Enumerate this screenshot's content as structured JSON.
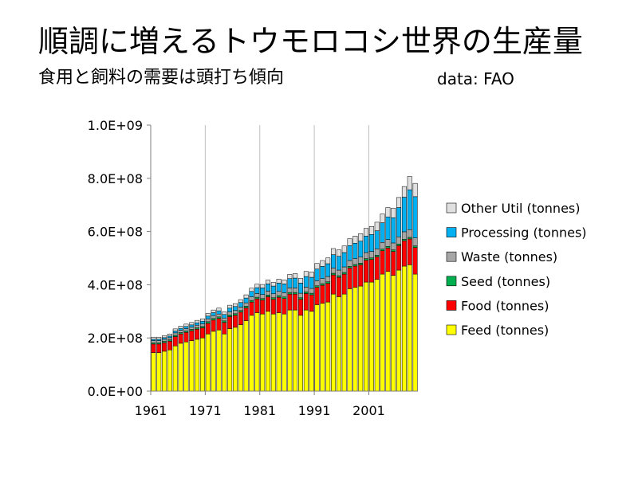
{
  "header": {
    "title": "順調に増えるトウモロコシ世界の生産量",
    "subtitle": "食用と飼料の需要は頭打ち傾向",
    "source": "data: FAO"
  },
  "chart_data": {
    "type": "bar",
    "stacked": true,
    "title": "",
    "xlabel": "",
    "ylabel": "",
    "ylim": [
      0,
      1000000000
    ],
    "y_ticks": [
      0,
      200000000,
      400000000,
      600000000,
      800000000,
      1000000000
    ],
    "y_tick_labels": [
      "0.0E+00",
      "2.0E+08",
      "4.0E+08",
      "6.0E+08",
      "8.0E+08",
      "1.0E+09"
    ],
    "x_tick_labels": [
      "1961",
      "1971",
      "1981",
      "1991",
      "2001"
    ],
    "grid": "vertical lines at labeled years",
    "legend": "right",
    "categories": [
      1961,
      1962,
      1963,
      1964,
      1965,
      1966,
      1967,
      1968,
      1969,
      1970,
      1971,
      1972,
      1973,
      1974,
      1975,
      1976,
      1977,
      1978,
      1979,
      1980,
      1981,
      1982,
      1983,
      1984,
      1985,
      1986,
      1987,
      1988,
      1989,
      1990,
      1991,
      1992,
      1993,
      1994,
      1995,
      1996,
      1997,
      1998,
      1999,
      2000,
      2001,
      2002,
      2003,
      2004,
      2005,
      2006,
      2007,
      2008,
      2009
    ],
    "series": [
      {
        "name": "Feed (tonnes)",
        "color": "#ffff00",
        "values": [
          145,
          145,
          150,
          155,
          170,
          180,
          185,
          190,
          195,
          200,
          215,
          225,
          230,
          215,
          235,
          240,
          250,
          265,
          285,
          295,
          290,
          300,
          290,
          295,
          290,
          305,
          305,
          285,
          305,
          300,
          325,
          330,
          335,
          365,
          355,
          365,
          385,
          390,
          395,
          410,
          410,
          420,
          440,
          450,
          435,
          455,
          470,
          475,
          440
        ]
      },
      {
        "name": "Food (tonnes)",
        "color": "#ff0000",
        "values": [
          32,
          32,
          32,
          33,
          35,
          35,
          36,
          37,
          38,
          38,
          40,
          42,
          43,
          43,
          45,
          45,
          47,
          48,
          50,
          52,
          52,
          55,
          55,
          58,
          58,
          60,
          60,
          60,
          62,
          62,
          65,
          68,
          70,
          72,
          73,
          75,
          78,
          80,
          80,
          82,
          85,
          85,
          88,
          88,
          90,
          92,
          95,
          97,
          100
        ]
      },
      {
        "name": "Seed (tonnes)",
        "color": "#00b050",
        "values": [
          5,
          5,
          5,
          5,
          5,
          5,
          5,
          5,
          5,
          5,
          6,
          6,
          6,
          6,
          6,
          6,
          6,
          6,
          6,
          6,
          6,
          6,
          6,
          6,
          6,
          6,
          6,
          6,
          6,
          6,
          6,
          6,
          6,
          6,
          6,
          6,
          6,
          6,
          6,
          6,
          6,
          6,
          6,
          6,
          6,
          6,
          6,
          6,
          6
        ]
      },
      {
        "name": "Waste (tonnes)",
        "color": "#a6a6a6",
        "values": [
          8,
          8,
          8,
          8,
          9,
          9,
          9,
          9,
          10,
          10,
          11,
          11,
          11,
          11,
          12,
          12,
          13,
          13,
          14,
          14,
          15,
          15,
          15,
          16,
          16,
          17,
          17,
          17,
          18,
          18,
          19,
          19,
          20,
          20,
          21,
          21,
          22,
          22,
          23,
          23,
          24,
          24,
          25,
          26,
          26,
          27,
          28,
          29,
          30
        ]
      },
      {
        "name": "Processing (tonnes)",
        "color": "#00b0f0",
        "values": [
          5,
          5,
          6,
          6,
          7,
          7,
          8,
          8,
          9,
          10,
          10,
          11,
          12,
          13,
          14,
          15,
          17,
          18,
          20,
          22,
          25,
          27,
          29,
          31,
          33,
          35,
          37,
          38,
          40,
          42,
          44,
          46,
          48,
          50,
          52,
          54,
          56,
          58,
          60,
          62,
          64,
          68,
          74,
          85,
          95,
          110,
          130,
          150,
          155
        ]
      },
      {
        "name": "Other Util (tonnes)",
        "color": "#e0e0e0",
        "values": [
          8,
          8,
          8,
          8,
          8,
          8,
          9,
          9,
          9,
          9,
          10,
          10,
          10,
          10,
          11,
          11,
          11,
          12,
          12,
          13,
          13,
          14,
          14,
          15,
          15,
          16,
          17,
          18,
          19,
          20,
          21,
          22,
          22,
          23,
          24,
          25,
          26,
          27,
          28,
          29,
          30,
          32,
          33,
          35,
          36,
          38,
          40,
          50,
          50
        ]
      }
    ],
    "value_unit_multiplier": 1000000
  }
}
